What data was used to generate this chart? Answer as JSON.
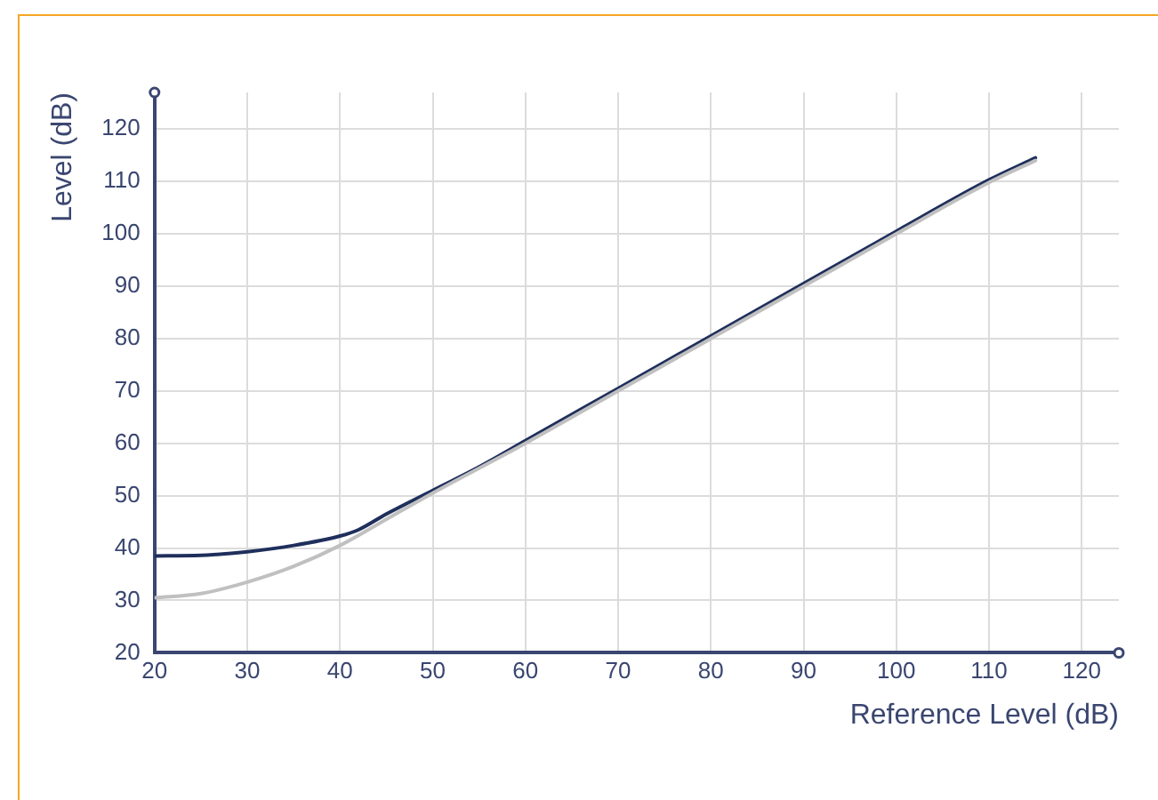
{
  "chart_data": {
    "type": "line",
    "xlabel": "Reference Level (dB)",
    "ylabel": "Level (dB)",
    "xlim": [
      20,
      124
    ],
    "ylim": [
      20,
      127
    ],
    "xticks": [
      20,
      30,
      40,
      50,
      60,
      70,
      80,
      90,
      100,
      110,
      120
    ],
    "yticks": [
      20,
      30,
      40,
      50,
      60,
      70,
      80,
      90,
      100,
      110,
      120
    ],
    "grid": true,
    "marker": "none",
    "line_style": "solid",
    "series": [
      {
        "color": "#c0c0c0",
        "x": [
          20,
          25,
          30,
          35,
          40,
          45,
          50,
          60,
          70,
          80,
          90,
          100,
          110,
          115
        ],
        "values": [
          30.5,
          31.3,
          33.5,
          36.5,
          40.5,
          45.5,
          50.5,
          60,
          70,
          80,
          90,
          100,
          109.8,
          114
        ]
      },
      {
        "color": "#1f2f5c",
        "x": [
          20,
          25,
          30,
          35,
          40,
          42,
          45,
          50,
          55,
          60,
          70,
          80,
          90,
          100,
          110,
          115
        ],
        "values": [
          38.5,
          38.6,
          39.3,
          40.5,
          42.3,
          43.5,
          46.5,
          51,
          55.5,
          60.5,
          70.5,
          80.5,
          90.5,
          100.5,
          110.3,
          114.5
        ]
      }
    ]
  }
}
